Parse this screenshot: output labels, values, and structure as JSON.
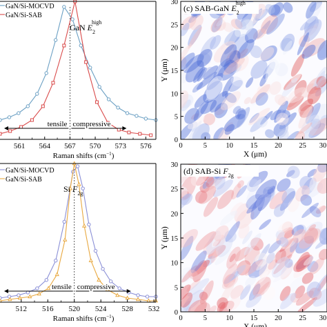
{
  "chart_data": [
    {
      "type": "line",
      "panel": "top-left",
      "xlabel_main": "Raman shifts (cm",
      "xlabel_sup": "−1",
      "xlabel_end": ")",
      "xlim": [
        558.7,
        577.2
      ],
      "x_ticks": [
        561,
        564,
        567,
        570,
        573,
        576
      ],
      "annotation_main": "GaN ",
      "annotation_sub": "2",
      "annotation_sup": "high",
      "annotation_italic": "E",
      "reference_line_x": 567,
      "tensile_label": "tensile",
      "compressive_label": "compressive",
      "legend": [
        "GaN/Si-MOCVD",
        "GaN/Si-SAB"
      ],
      "legend_placement": "top-left",
      "series": [
        {
          "name": "GaN/Si-MOCVD",
          "color": "#6a9fc3",
          "marker": "circle",
          "x": [
            558.7,
            559.8,
            560.9,
            562.0,
            563.1,
            564.2,
            565.3,
            566.3,
            567.3,
            568.3,
            569.4,
            570.5,
            571.6,
            572.7,
            573.8,
            574.9,
            576.0,
            577.2
          ],
          "y": [
            0.14,
            0.16,
            0.19,
            0.24,
            0.33,
            0.48,
            0.72,
            0.96,
            0.87,
            0.68,
            0.52,
            0.38,
            0.29,
            0.23,
            0.19,
            0.17,
            0.15,
            0.14
          ]
        },
        {
          "name": "GaN/Si-SAB",
          "color": "#d94a4a",
          "marker": "square",
          "x": [
            558.7,
            559.9,
            561.2,
            562.5,
            563.8,
            565.0,
            566.3,
            567.6,
            568.9,
            570.2,
            571.5,
            572.8,
            574.0,
            575.3,
            576.6
          ],
          "y": [
            0.04,
            0.06,
            0.09,
            0.14,
            0.24,
            0.41,
            0.68,
            1.0,
            0.56,
            0.27,
            0.12,
            0.07,
            0.05,
            0.04,
            0.03
          ]
        }
      ]
    },
    {
      "type": "line",
      "panel": "bottom-left",
      "xlabel_main": "Raman shifts (cm",
      "xlabel_sup": "−1",
      "xlabel_end": ")",
      "xlim": [
        508.8,
        532.3
      ],
      "x_ticks": [
        512,
        516,
        520,
        524,
        528,
        532
      ],
      "annotation_main": "Si ",
      "annotation_italic": "F",
      "annotation_sub": "2g",
      "reference_line_x": 520,
      "tensile_label": "tensile",
      "compressive_label": "compressive",
      "legend": [
        "GaN/Si-MOCVD",
        "GaN/Si-SAB"
      ],
      "legend_placement": "top-left",
      "series": [
        {
          "name": "GaN/Si-MOCVD",
          "color": "#8a8fd6",
          "marker": "circle",
          "x": [
            508.8,
            510.2,
            511.6,
            513.0,
            514.4,
            515.8,
            517.2,
            518.5,
            519.8,
            520.5,
            521.3,
            522.2,
            523.2,
            524.3,
            525.5,
            526.8,
            528.2,
            529.6,
            531.0,
            532.3
          ],
          "y": [
            0.03,
            0.04,
            0.05,
            0.07,
            0.1,
            0.16,
            0.3,
            0.58,
            0.94,
            0.98,
            0.82,
            0.56,
            0.37,
            0.24,
            0.15,
            0.1,
            0.07,
            0.05,
            0.04,
            0.04
          ]
        },
        {
          "name": "GaN/Si-SAB",
          "color": "#e8a840",
          "marker": "triangle",
          "x": [
            508.8,
            510.3,
            511.8,
            513.3,
            514.7,
            516.1,
            517.4,
            518.6,
            519.4,
            520.0,
            520.7,
            521.5,
            522.5,
            523.7,
            525.0,
            526.5,
            528.0,
            529.6,
            531.2,
            532.3
          ],
          "y": [
            0.01,
            0.02,
            0.03,
            0.04,
            0.06,
            0.1,
            0.2,
            0.45,
            0.82,
            1.0,
            0.85,
            0.55,
            0.3,
            0.16,
            0.09,
            0.05,
            0.03,
            0.02,
            0.01,
            0.01
          ]
        }
      ]
    },
    {
      "type": "heatmap",
      "panel": "top-right",
      "title_main": "(c) SAB-GaN ",
      "title_italic": "E",
      "title_sub": "2",
      "title_sup": "high",
      "xlabel": "X (μm)",
      "ylabel": "Y (μm)",
      "xlim": [
        0,
        30
      ],
      "ylim": [
        0,
        30
      ],
      "x_ticks": [
        0,
        5,
        10,
        15,
        20,
        25,
        30
      ],
      "y_ticks": [
        0,
        5,
        10,
        15,
        20,
        25,
        30
      ],
      "colors": {
        "low": "#4f6fd8",
        "mid": "#ffffff",
        "high": "#e05a5a"
      }
    },
    {
      "type": "heatmap",
      "panel": "bottom-right",
      "title_main": "(d) SAB-Si ",
      "title_italic": "F",
      "title_sub": "2g",
      "xlabel": "X (μm)",
      "ylabel": "Y (μm)",
      "xlim": [
        0,
        30
      ],
      "ylim": [
        0,
        30
      ],
      "x_ticks": [
        0,
        5,
        10,
        15,
        20,
        25,
        30
      ],
      "y_ticks": [
        0,
        5,
        10,
        15,
        20,
        25,
        30
      ],
      "colors": {
        "low": "#5a74da",
        "mid": "#ffffff",
        "high": "#e35f66"
      }
    }
  ]
}
